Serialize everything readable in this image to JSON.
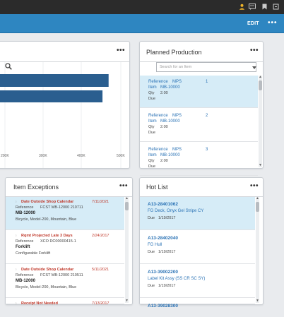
{
  "header": {
    "edit_label": "EDIT",
    "menu_label": "•••",
    "icons": [
      "user-icon",
      "message-icon",
      "bookmark-icon",
      "settings-icon"
    ],
    "accent_color": "#2e86c1"
  },
  "chart_panel": {
    "menu_label": "•••",
    "chart_data": {
      "type": "bar",
      "orientation": "horizontal",
      "values": [
        560000,
        540000,
        500000
      ],
      "x_ticks": [
        "200K",
        "300K",
        "400K",
        "500K"
      ],
      "xlim": [
        100000,
        600000
      ]
    }
  },
  "planned_production": {
    "title": "Planned Production",
    "menu_label": "•••",
    "search_placeholder": "Search for an Item",
    "items": [
      {
        "reference_label": "Reference",
        "reference_value": "MPS",
        "num": "1",
        "item_label": "Item",
        "item_value": "MB-10000",
        "qty_label": "Qty",
        "qty_value": "2.00",
        "due_label": "Due",
        "selected": true
      },
      {
        "reference_label": "Reference",
        "reference_value": "MPS",
        "num": "2",
        "item_label": "Item",
        "item_value": "MB-10000",
        "qty_label": "Qty",
        "qty_value": "2.00",
        "due_label": "Due",
        "selected": false
      },
      {
        "reference_label": "Reference",
        "reference_value": "MPS",
        "num": "3",
        "item_label": "Item",
        "item_value": "MB-10000",
        "qty_label": "Qty",
        "qty_value": "2.00",
        "due_label": "Due",
        "selected": false
      }
    ]
  },
  "item_exceptions": {
    "title": "Item Exceptions",
    "menu_label": "•••",
    "items": [
      {
        "title": "Date Outside Shop Calendar",
        "date": "7/11/2021",
        "ref_label": "Reference",
        "ref_value": "FCST MB-12000 210711",
        "part": "MB-12000",
        "desc": "Bicycle, Model-200, Mountain, Blue",
        "selected": true
      },
      {
        "title": "Rqmt Projected Late 3 Days",
        "date": "2/24/2017",
        "ref_label": "Reference",
        "ref_value": "XCO DC00000415-1",
        "part": "Forklift",
        "desc": "Configurable Forklift",
        "selected": false
      },
      {
        "title": "Date Outside Shop Calendar",
        "date": "5/11/2021",
        "ref_label": "Reference",
        "ref_value": "FCST MB-12000 210511",
        "part": "MB-12000",
        "desc": "Bicycle, Model-200, Mountain, Blue",
        "selected": false
      },
      {
        "title": "Receipt Not Needed",
        "date": "7/13/2017",
        "selected": false
      }
    ]
  },
  "hot_list": {
    "title": "Hot List",
    "menu_label": "•••",
    "items": [
      {
        "id": "A13-28401062",
        "desc": "FG Deck, Onyx Gel Stripe CY",
        "due_label": "Due",
        "due_value": "1/19/2017",
        "selected": true
      },
      {
        "id": "A13-28402040",
        "desc": "FG Hull",
        "due_label": "Due",
        "due_value": "1/19/2017",
        "selected": false
      },
      {
        "id": "A13-39002200",
        "desc": "Label Kit Assy (SS CR SC SY)",
        "due_label": "Due",
        "due_value": "1/19/2017",
        "selected": false
      },
      {
        "id": "A13-39028300",
        "selected": false
      }
    ]
  }
}
